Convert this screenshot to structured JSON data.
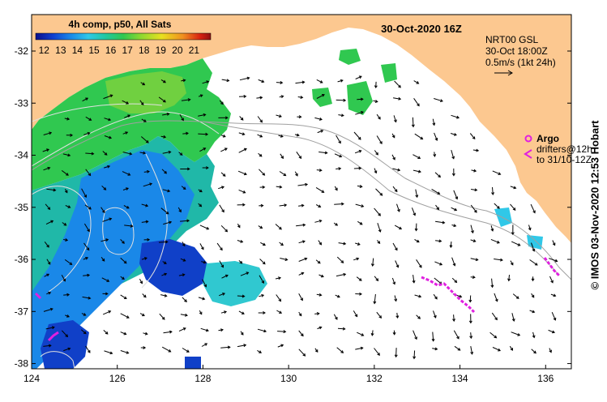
{
  "map": {
    "composite_label": "4h comp, p50, All Sats",
    "date_label": "30-Oct-2020 16Z",
    "current_legend": {
      "line1": "NRT00 GSL",
      "line2": "30-Oct 18:00Z",
      "line3": "0.5m/s (1kt 24h)",
      "reference_speed_ms": 0.5
    },
    "argo_label": "Argo",
    "drifter_label_1": "drifters@12h",
    "drifter_label_2": "to 31/10-12Z",
    "credit": "IMOS 03-Nov-2020 12:53 Hobart",
    "colorbar": {
      "ticks": [
        "12",
        "13",
        "14",
        "15",
        "16",
        "17",
        "18",
        "19",
        "20",
        "21"
      ],
      "min": 11.5,
      "max": 22,
      "colors": [
        "#0a0f8c",
        "#1040d0",
        "#1a88e8",
        "#30c8e8",
        "#20c8a0",
        "#30c850",
        "#8cd830",
        "#e8e020",
        "#f09020",
        "#d82010",
        "#901010"
      ]
    },
    "lon_ticks": [
      "124",
      "126",
      "128",
      "130",
      "132",
      "134",
      "136"
    ],
    "lat_ticks": [
      "-32",
      "-33",
      "-34",
      "-35",
      "-36",
      "-37",
      "-38"
    ],
    "lon_range": [
      124,
      136.6
    ],
    "lat_range": [
      -31.3,
      -38.1
    ],
    "colors": {
      "land": "#fcc890",
      "ocean_nodata": "#ffffff",
      "argo": "#e020e0",
      "drifters": "#e020e0",
      "arrows": "#000000",
      "contours": "#e0e0e0",
      "shelf_line": "#a0a0a0"
    }
  }
}
